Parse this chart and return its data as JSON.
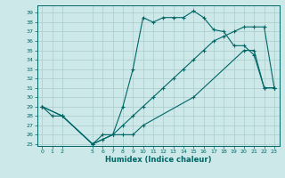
{
  "xlabel": "Humidex (Indice chaleur)",
  "bg_color": "#cce8e8",
  "grid_color": "#aacccc",
  "line_color": "#006666",
  "xlim": [
    -0.5,
    23.5
  ],
  "ylim": [
    24.8,
    39.8
  ],
  "xticks": [
    0,
    1,
    2,
    5,
    6,
    7,
    8,
    9,
    10,
    11,
    12,
    13,
    14,
    15,
    16,
    17,
    18,
    19,
    20,
    21,
    22,
    23
  ],
  "yticks": [
    25,
    26,
    27,
    28,
    29,
    30,
    31,
    32,
    33,
    34,
    35,
    36,
    37,
    38,
    39
  ],
  "line1_x": [
    0,
    1,
    2,
    5,
    6,
    7,
    8,
    9,
    10,
    11,
    12,
    13,
    14,
    15,
    16,
    17,
    18,
    19,
    20,
    21,
    22,
    23
  ],
  "line1_y": [
    29,
    28,
    28,
    25,
    26,
    26,
    29,
    33,
    38.5,
    38,
    38.5,
    38.5,
    38.5,
    39.2,
    38.5,
    37.2,
    37.0,
    35.5,
    35.5,
    34.5,
    31,
    31
  ],
  "line2_x": [
    0,
    2,
    5,
    7,
    8,
    9,
    10,
    11,
    12,
    13,
    14,
    15,
    16,
    17,
    18,
    19,
    20,
    21,
    22,
    23
  ],
  "line2_y": [
    29,
    28,
    25,
    26,
    27,
    28,
    29,
    30,
    31,
    32,
    33,
    34,
    35,
    36,
    36.5,
    37,
    37.5,
    37.5,
    37.5,
    31
  ],
  "line3_x": [
    0,
    2,
    5,
    6,
    7,
    8,
    9,
    10,
    15,
    20,
    21,
    22,
    23
  ],
  "line3_y": [
    29,
    28,
    25,
    25.5,
    26,
    26,
    26,
    27,
    30,
    35,
    35,
    31,
    31
  ]
}
